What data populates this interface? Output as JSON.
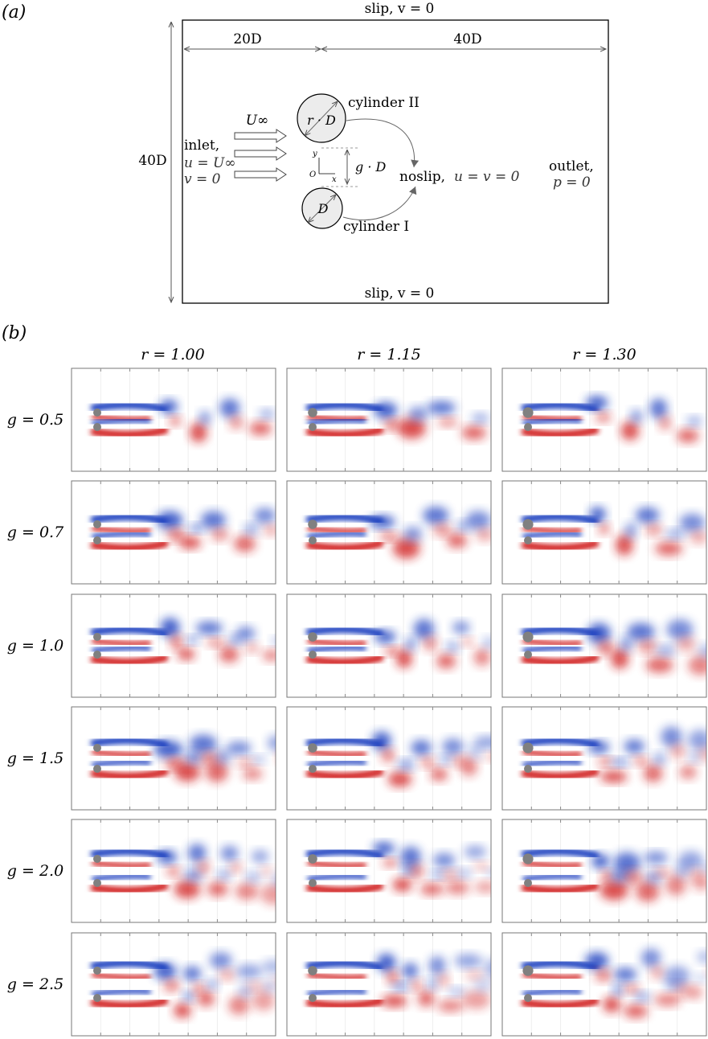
{
  "panel_a": {
    "label": "(a)",
    "top_bc": "slip, v = 0",
    "bottom_bc": "slip, v = 0",
    "upstream_length": "20D",
    "downstream_length": "40D",
    "domain_height": "40D",
    "freestream": "U∞",
    "inlet_title": "inlet,",
    "inlet_u": "u = U∞",
    "inlet_v": "v = 0",
    "cyl2_label": "cylinder II",
    "cyl2_diam": "r · D",
    "cyl1_label": "cylinder I",
    "cyl1_diam": "D",
    "gap_label": "g · D",
    "axis_y": "y",
    "axis_x": "x",
    "origin": "O",
    "noslip": "noslip,",
    "noslip_cond": "u = v = 0",
    "outlet_title": "outlet,",
    "outlet_cond": "p = 0"
  },
  "panel_b": {
    "label": "(b)",
    "columns": [
      "r = 1.00",
      "r = 1.15",
      "r = 1.30"
    ],
    "rows": [
      "g = 0.5",
      "g = 0.7",
      "g = 1.0",
      "g = 1.5",
      "g = 2.0",
      "g = 2.5"
    ],
    "colors": {
      "positive_vorticity": "#1f3fbf",
      "negative_vorticity": "#d01c1c",
      "cylinder": "#808080"
    }
  }
}
